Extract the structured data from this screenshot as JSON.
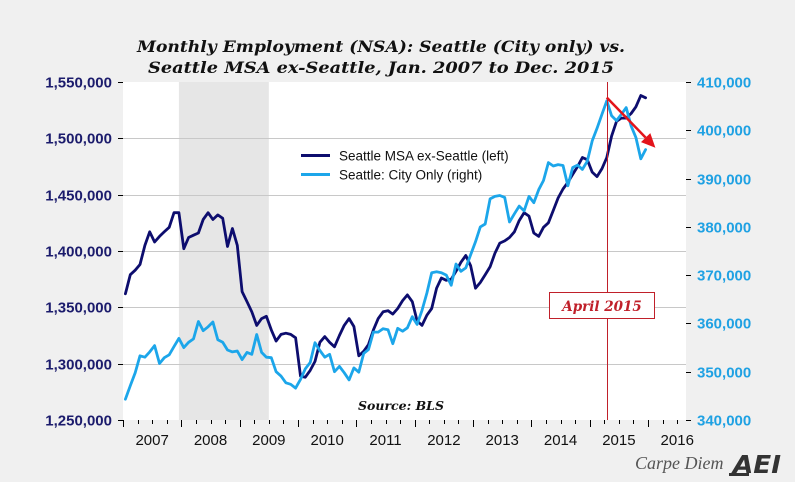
{
  "page": {
    "background": "#f0f0f0",
    "plot_background": "#ffffff"
  },
  "chart_data": {
    "type": "line",
    "title": "Monthly Employment (NSA): Seattle (City only) vs. Seattle MSA ex-Seattle, Jan. 2007 to Dec. 2015",
    "title_lines": [
      "Monthly Employment (NSA): Seattle (City only) vs.",
      "Seattle MSA ex-Seattle, Jan. 2007 to Dec. 2015"
    ],
    "source": "Source: BLS",
    "frequency": "monthly",
    "xlabel": "",
    "xlim": [
      2007,
      2016.65
    ],
    "x_tick_labels": [
      "2007",
      "2008",
      "2009",
      "2010",
      "2011",
      "2012",
      "2013",
      "2014",
      "2015",
      "2016"
    ],
    "grid": true,
    "legend": {
      "position": "upper-center"
    },
    "y_left": {
      "label": "",
      "lim": [
        1250000,
        1550000
      ],
      "ticks": [
        1250000,
        1300000,
        1350000,
        1400000,
        1450000,
        1500000,
        1550000
      ],
      "tick_labels": [
        "1,250,000",
        "1,300,000",
        "1,350,000",
        "1,400,000",
        "1,450,000",
        "1,500,000",
        "1,550,000"
      ],
      "color": "#1b1b6c"
    },
    "y_right": {
      "label": "",
      "lim": [
        340000,
        410000
      ],
      "ticks": [
        340000,
        350000,
        360000,
        370000,
        380000,
        390000,
        400000,
        410000
      ],
      "tick_labels": [
        "340,000",
        "350,000",
        "360,000",
        "370,000",
        "380,000",
        "390,000",
        "400,000",
        "410,000"
      ],
      "color": "#1fa1e3"
    },
    "shaded_region": {
      "start": "2007-12",
      "end": "2009-06",
      "color": "#e6e6e6"
    },
    "x": [
      "2007-01",
      "2007-02",
      "2007-03",
      "2007-04",
      "2007-05",
      "2007-06",
      "2007-07",
      "2007-08",
      "2007-09",
      "2007-10",
      "2007-11",
      "2007-12",
      "2008-01",
      "2008-02",
      "2008-03",
      "2008-04",
      "2008-05",
      "2008-06",
      "2008-07",
      "2008-08",
      "2008-09",
      "2008-10",
      "2008-11",
      "2008-12",
      "2009-01",
      "2009-02",
      "2009-03",
      "2009-04",
      "2009-05",
      "2009-06",
      "2009-07",
      "2009-08",
      "2009-09",
      "2009-10",
      "2009-11",
      "2009-12",
      "2010-01",
      "2010-02",
      "2010-03",
      "2010-04",
      "2010-05",
      "2010-06",
      "2010-07",
      "2010-08",
      "2010-09",
      "2010-10",
      "2010-11",
      "2010-12",
      "2011-01",
      "2011-02",
      "2011-03",
      "2011-04",
      "2011-05",
      "2011-06",
      "2011-07",
      "2011-08",
      "2011-09",
      "2011-10",
      "2011-11",
      "2011-12",
      "2012-01",
      "2012-02",
      "2012-03",
      "2012-04",
      "2012-05",
      "2012-06",
      "2012-07",
      "2012-08",
      "2012-09",
      "2012-10",
      "2012-11",
      "2012-12",
      "2013-01",
      "2013-02",
      "2013-03",
      "2013-04",
      "2013-05",
      "2013-06",
      "2013-07",
      "2013-08",
      "2013-09",
      "2013-10",
      "2013-11",
      "2013-12",
      "2014-01",
      "2014-02",
      "2014-03",
      "2014-04",
      "2014-05",
      "2014-06",
      "2014-07",
      "2014-08",
      "2014-09",
      "2014-10",
      "2014-11",
      "2014-12",
      "2015-01",
      "2015-02",
      "2015-03",
      "2015-04",
      "2015-05",
      "2015-06",
      "2015-07",
      "2015-08",
      "2015-09",
      "2015-10",
      "2015-11",
      "2015-12"
    ],
    "series": [
      {
        "name": "Seattle MSA ex-Seattle (left)",
        "axis": "left",
        "color": "#0d0d6e",
        "values": [
          1362000,
          1379000,
          1383000,
          1388000,
          1405000,
          1417000,
          1408000,
          1413000,
          1417000,
          1421000,
          1434000,
          1434000,
          1402000,
          1412000,
          1414000,
          1416000,
          1428000,
          1434000,
          1428000,
          1432000,
          1429000,
          1404000,
          1420000,
          1405000,
          1364000,
          1355000,
          1346000,
          1334000,
          1340000,
          1342000,
          1330000,
          1320000,
          1326000,
          1327000,
          1326000,
          1323000,
          1289000,
          1288000,
          1294000,
          1302000,
          1319000,
          1324000,
          1319000,
          1315000,
          1325000,
          1334000,
          1340000,
          1333000,
          1307000,
          1311000,
          1317000,
          1330000,
          1340000,
          1346000,
          1347000,
          1344000,
          1349000,
          1356000,
          1361000,
          1355000,
          1338000,
          1334000,
          1343000,
          1349000,
          1367000,
          1376000,
          1374000,
          1375000,
          1382000,
          1390000,
          1396000,
          1387000,
          1367000,
          1372000,
          1379000,
          1386000,
          1398000,
          1407000,
          1409000,
          1412000,
          1417000,
          1427000,
          1434000,
          1431000,
          1416000,
          1413000,
          1421000,
          1425000,
          1436000,
          1447000,
          1455000,
          1461000,
          1468000,
          1475000,
          1483000,
          1481000,
          1470000,
          1466000,
          1473000,
          1483000,
          1502000,
          1515000,
          1518000,
          1518000,
          1522000,
          1528000,
          1538000,
          1536000
        ]
      },
      {
        "name": "Seattle: City Only (right)",
        "axis": "right",
        "color": "#1ca6ea",
        "values": [
          344300,
          347100,
          349800,
          353300,
          353000,
          354100,
          355400,
          351700,
          352900,
          353500,
          355200,
          356900,
          355000,
          356100,
          356800,
          360400,
          358500,
          359300,
          360300,
          356600,
          356100,
          354500,
          354100,
          354300,
          352500,
          354000,
          353600,
          357700,
          354000,
          353000,
          352900,
          350000,
          349100,
          347700,
          347400,
          346600,
          348400,
          350600,
          351900,
          356000,
          354400,
          353000,
          353600,
          350000,
          351100,
          349800,
          348300,
          350800,
          349900,
          353800,
          354600,
          358200,
          358200,
          358900,
          358700,
          355800,
          359000,
          358400,
          359100,
          361400,
          359800,
          362700,
          366300,
          370500,
          370700,
          370500,
          370000,
          367900,
          372300,
          370800,
          371500,
          374200,
          376900,
          380000,
          380600,
          385800,
          386300,
          386500,
          386100,
          381000,
          382700,
          384300,
          383300,
          386300,
          385000,
          387700,
          389600,
          393300,
          392600,
          392900,
          392700,
          388500,
          392300,
          392800,
          391900,
          393600,
          397800,
          400400,
          403300,
          406100,
          403000,
          402000,
          403300,
          404700,
          400900,
          398500,
          394100,
          396000
        ]
      }
    ],
    "annotations": [
      {
        "type": "vline",
        "x": "2015-04",
        "label": "April 2015",
        "color": "#c0202a"
      },
      {
        "type": "arrow",
        "from": {
          "x": "2015-04",
          "y": 406800,
          "axis": "right"
        },
        "to": {
          "x": "2016-02",
          "y": 396400,
          "axis": "right"
        },
        "color": "#e3141b"
      }
    ]
  },
  "branding": {
    "blog_name": "Carpe Diem",
    "logo_text": "AEI"
  }
}
